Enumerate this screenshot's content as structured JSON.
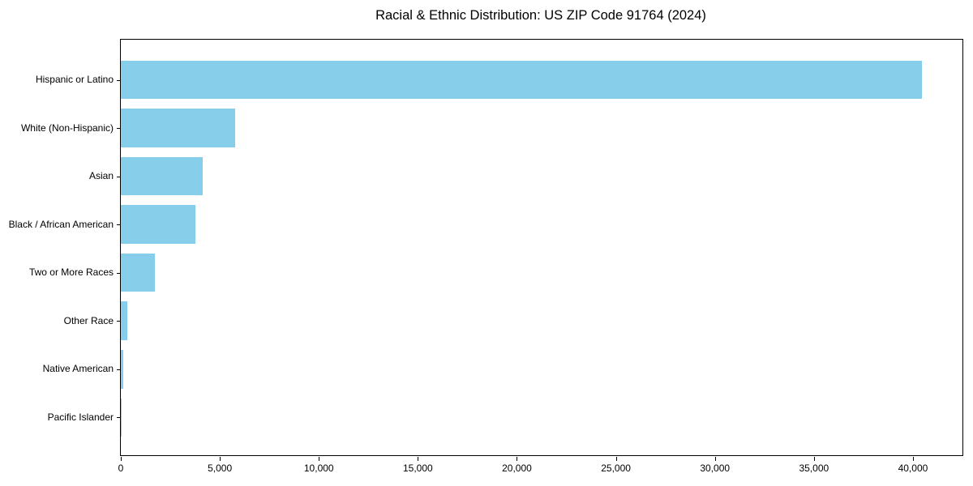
{
  "chart_data": {
    "type": "bar",
    "orientation": "horizontal",
    "title": "Racial & Ethnic Distribution: US ZIP Code 91764 (2024)",
    "categories": [
      "Hispanic or Latino",
      "White (Non-Hispanic)",
      "Asian",
      "Black / African American",
      "Two or More Races",
      "Other Race",
      "Native American",
      "Pacific Islander"
    ],
    "values": [
      40470,
      5760,
      4120,
      3760,
      1740,
      345,
      110,
      30
    ],
    "xlabel": "",
    "ylabel": "",
    "xlim": [
      0,
      42500
    ],
    "x_ticks": [
      0,
      5000,
      10000,
      15000,
      20000,
      25000,
      30000,
      35000,
      40000
    ],
    "x_tick_labels": [
      "0",
      "5,000",
      "10,000",
      "15,000",
      "20,000",
      "25,000",
      "30,000",
      "35,000",
      "40,000"
    ],
    "grid": false,
    "legend": "none",
    "bar_color": "#87CEEB",
    "axis_color": "#000000",
    "text_color": "#000000",
    "background_color": "#FFFFFF"
  }
}
